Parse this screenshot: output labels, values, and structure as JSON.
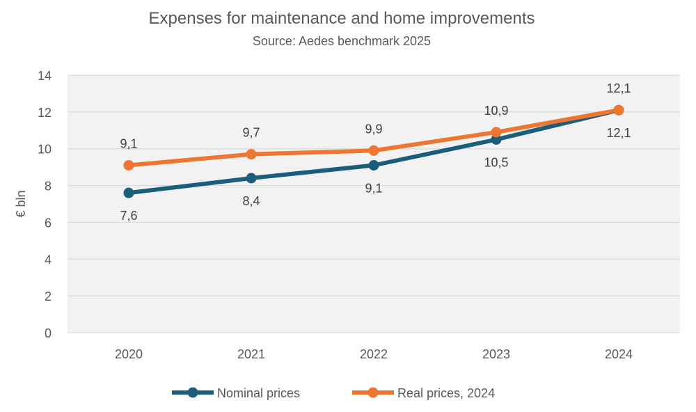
{
  "chart_data": {
    "type": "line",
    "title": "Expenses for maintenance and home improvements",
    "subtitle": "Source: Aedes benchmark 2025",
    "ylabel": "€ bln",
    "xlabel": "",
    "categories": [
      "2020",
      "2021",
      "2022",
      "2023",
      "2024"
    ],
    "ylim": [
      0,
      14
    ],
    "yticks": [
      0,
      2,
      4,
      6,
      8,
      10,
      12,
      14
    ],
    "grid": true,
    "legend": "bottom",
    "series": [
      {
        "name": "Nominal prices",
        "color": "#1b5e7b",
        "values": [
          7.6,
          8.4,
          9.1,
          10.5,
          12.1
        ],
        "labels": [
          "7,6",
          "8,4",
          "9,1",
          "10,5",
          "12,1"
        ],
        "label_position": "below"
      },
      {
        "name": "Real prices, 2024",
        "color": "#ee7633",
        "values": [
          9.1,
          9.7,
          9.9,
          10.9,
          12.1
        ],
        "labels": [
          "9,1",
          "9,7",
          "9,9",
          "10,9",
          "12,1"
        ],
        "label_position": "above"
      }
    ],
    "plot_background": "#f2f2f2",
    "grid_color": "#d9d9d9"
  }
}
